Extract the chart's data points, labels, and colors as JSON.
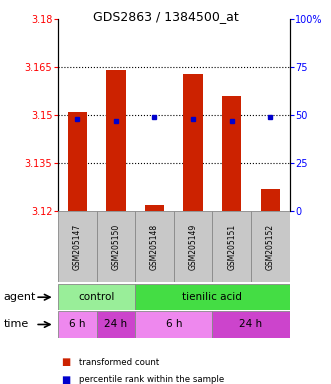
{
  "title": "GDS2863 / 1384500_at",
  "samples": [
    "GSM205147",
    "GSM205150",
    "GSM205148",
    "GSM205149",
    "GSM205151",
    "GSM205152"
  ],
  "bar_values": [
    3.151,
    3.164,
    3.122,
    3.163,
    3.156,
    3.127
  ],
  "bar_base": 3.12,
  "percentile_values": [
    48,
    47,
    49,
    48,
    47,
    49
  ],
  "ylim_left": [
    3.12,
    3.18
  ],
  "ylim_right": [
    0,
    100
  ],
  "yticks_left": [
    3.12,
    3.135,
    3.15,
    3.165,
    3.18
  ],
  "yticks_right": [
    0,
    25,
    50,
    75,
    100
  ],
  "hlines": [
    3.135,
    3.15,
    3.165
  ],
  "bar_color": "#cc2200",
  "percentile_color": "#0000cc",
  "agent_labels": [
    {
      "text": "control",
      "span": [
        0,
        2
      ],
      "color": "#99ee99"
    },
    {
      "text": "tienilic acid",
      "span": [
        2,
        6
      ],
      "color": "#44dd44"
    }
  ],
  "time_labels": [
    {
      "text": "6 h",
      "span": [
        0,
        1
      ],
      "color": "#ee88ee"
    },
    {
      "text": "24 h",
      "span": [
        1,
        2
      ],
      "color": "#cc44cc"
    },
    {
      "text": "6 h",
      "span": [
        2,
        4
      ],
      "color": "#ee88ee"
    },
    {
      "text": "24 h",
      "span": [
        4,
        6
      ],
      "color": "#cc44cc"
    }
  ],
  "legend_items": [
    {
      "label": "transformed count",
      "color": "#cc2200"
    },
    {
      "label": "percentile rank within the sample",
      "color": "#0000cc"
    }
  ],
  "sample_bg": "#c8c8c8"
}
